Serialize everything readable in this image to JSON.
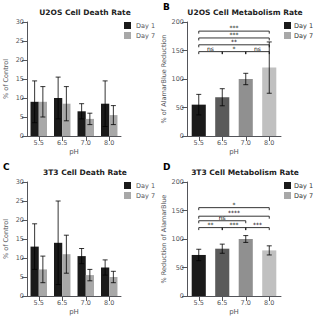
{
  "chart_data": [
    {
      "type": "bar",
      "title": "U2OS Cell Death Rate",
      "xlabel": "pH",
      "ylabel": "% of Control",
      "categories": [
        "5.5",
        "6.5",
        "7.0",
        "8.0"
      ],
      "series": [
        {
          "name": "Day 1",
          "color": "#1a1a1a",
          "values": [
            9.0,
            10.0,
            6.5,
            8.5
          ],
          "errors": [
            5.5,
            5.5,
            2.0,
            6.0
          ]
        },
        {
          "name": "Day 7",
          "color": "#a8a8a8",
          "values": [
            9.0,
            8.5,
            4.5,
            5.5
          ],
          "errors": [
            4.0,
            4.5,
            1.5,
            2.5
          ]
        }
      ],
      "ylim": [
        0,
        30
      ],
      "yticks": [
        0,
        5,
        10,
        15,
        20,
        25,
        30
      ],
      "grid": false,
      "legend": "right"
    },
    {
      "type": "bar",
      "title": "U2OS Cell Metabolism Rate",
      "xlabel": "pH",
      "ylabel": "% of AlamarBlue Reduction",
      "panel_label": "B",
      "categories": [
        "5.5",
        "6.5",
        "7.0",
        "8.0"
      ],
      "values": [
        55,
        68,
        100,
        120
      ],
      "errors": [
        18,
        15,
        10,
        45
      ],
      "colors": [
        "#1a1a1a",
        "#5a5a5a",
        "#909090",
        "#c0c0c0"
      ],
      "ylim": [
        0,
        200
      ],
      "yticks": [
        0,
        50,
        100,
        150,
        200
      ],
      "grid": false,
      "legend": "right",
      "legend_entries": [
        {
          "name": "Day 1",
          "color": "#1a1a1a"
        },
        {
          "name": "Day 7",
          "color": "#a8a8a8"
        }
      ],
      "annotations": [
        {
          "text": "ns",
          "x1": "5.5",
          "x2": "6.5",
          "y": 148
        },
        {
          "text": "*",
          "x1": "6.5",
          "x2": "7.0",
          "y": 148
        },
        {
          "text": "ns",
          "x1": "7.0",
          "x2": "8.0",
          "y": 148
        },
        {
          "text": "**",
          "x1": "5.5",
          "x2": "8.0",
          "y": 160
        },
        {
          "text": "***",
          "x1": "5.5",
          "x2": "8.0",
          "y": 172
        },
        {
          "text": "***",
          "x1": "5.5",
          "x2": "8.0",
          "y": 184
        }
      ]
    },
    {
      "type": "bar",
      "title": "3T3 Cell Death Rate",
      "xlabel": "pH",
      "ylabel": "% of Control",
      "panel_label": "C",
      "categories": [
        "5.5",
        "6.5",
        "7.0",
        "8.0"
      ],
      "series": [
        {
          "name": "Day 1",
          "color": "#1a1a1a",
          "values": [
            13.0,
            14.0,
            10.5,
            7.5
          ],
          "errors": [
            6.0,
            11.0,
            2.0,
            2.0
          ]
        },
        {
          "name": "Day 7",
          "color": "#a8a8a8",
          "values": [
            7.0,
            11.0,
            5.5,
            5.0
          ],
          "errors": [
            3.5,
            5.0,
            1.5,
            1.5
          ]
        }
      ],
      "ylim": [
        0,
        30
      ],
      "yticks": [
        0,
        5,
        10,
        15,
        20,
        25,
        30
      ],
      "grid": false,
      "legend": "right"
    },
    {
      "type": "bar",
      "title": "3T3 Cell Metabolism Rate",
      "xlabel": "pH",
      "ylabel": "% Reduction of AlamarBlue",
      "panel_label": "D",
      "categories": [
        "5.5",
        "6.5",
        "7.0",
        "8.0"
      ],
      "values": [
        72,
        83,
        100,
        80
      ],
      "errors": [
        10,
        8,
        6,
        8
      ],
      "colors": [
        "#1a1a1a",
        "#5a5a5a",
        "#909090",
        "#c0c0c0"
      ],
      "ylim": [
        0,
        200
      ],
      "yticks": [
        0,
        50,
        100,
        150,
        200
      ],
      "grid": false,
      "legend": "right",
      "legend_entries": [
        {
          "name": "Day 1",
          "color": "#1a1a1a"
        },
        {
          "name": "Day 7",
          "color": "#a8a8a8"
        }
      ],
      "annotations": [
        {
          "text": "**",
          "x1": "5.5",
          "x2": "6.5",
          "y": 120
        },
        {
          "text": "***",
          "x1": "6.5",
          "x2": "7.0",
          "y": 120
        },
        {
          "text": "***",
          "x1": "7.0",
          "x2": "8.0",
          "y": 120
        },
        {
          "text": "****",
          "x1": "5.5",
          "x2": "8.0",
          "y": 140
        },
        {
          "text": "ns",
          "x1": "5.5",
          "x2": "7.0",
          "y": 132
        },
        {
          "text": "*",
          "x1": "5.5",
          "x2": "8.0",
          "y": 155
        }
      ]
    }
  ]
}
